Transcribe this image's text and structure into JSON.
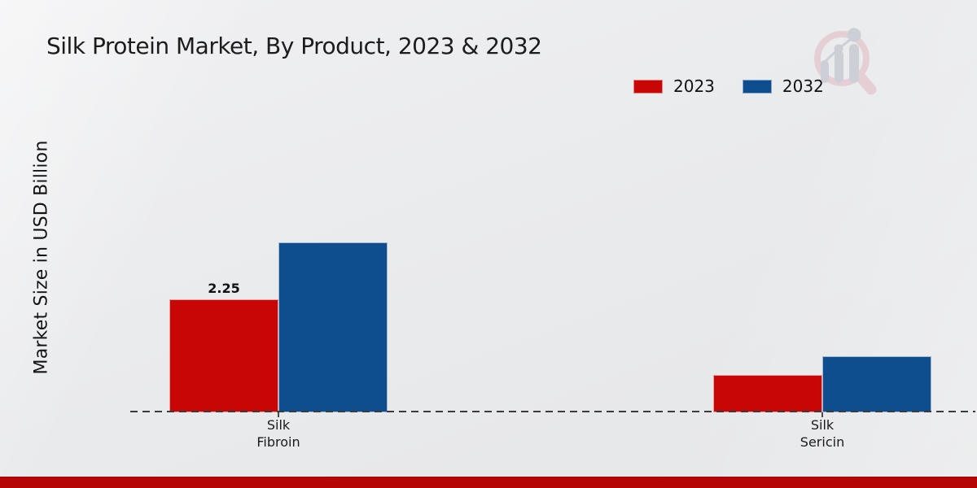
{
  "chart_data": {
    "type": "bar",
    "title": "Silk Protein Market, By Product, 2023 & 2032",
    "ylabel": "Market Size in USD Billion",
    "unit": "USD Billion",
    "legend_position": "top-right",
    "grid": false,
    "baseline_value": 0,
    "series": [
      {
        "name": "2023",
        "color": "#c80606"
      },
      {
        "name": "2032",
        "color": "#0e4d8e"
      }
    ],
    "groups": [
      {
        "category": "Silk Fibroin",
        "category_lines": [
          "Silk",
          "Fibroin"
        ],
        "values": [
          2.25,
          3.38
        ],
        "value_labels": [
          "2.25",
          ""
        ]
      },
      {
        "category": "Silk Sericin",
        "category_lines": [
          "Silk",
          "Sericin"
        ],
        "values": [
          0.74,
          1.12
        ],
        "value_labels": [
          "",
          ""
        ]
      }
    ]
  },
  "footer": {
    "accent_color": "#b50505"
  },
  "logo": {
    "name": "market-research-logo",
    "ring_color": "#e6cbd0",
    "bar_color": "#c7cbd2"
  }
}
